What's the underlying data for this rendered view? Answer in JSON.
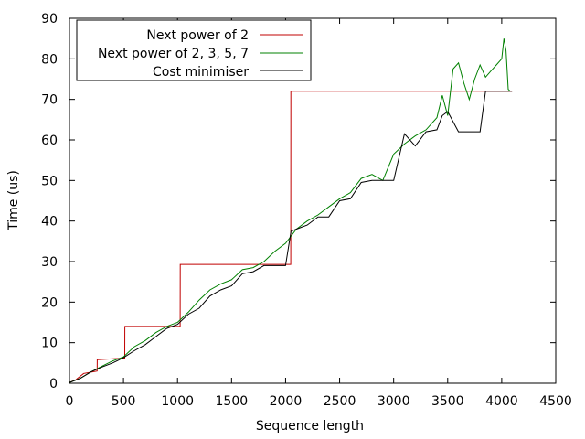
{
  "chart_data": {
    "type": "line",
    "title": "",
    "xlabel": "Sequence length",
    "ylabel": "Time (us)",
    "xlim": [
      0,
      4500
    ],
    "ylim": [
      0,
      90
    ],
    "xticks": [
      0,
      500,
      1000,
      1500,
      2000,
      2500,
      3000,
      3500,
      4000,
      4500
    ],
    "yticks": [
      0,
      10,
      20,
      30,
      40,
      50,
      60,
      70,
      80,
      90
    ],
    "grid": false,
    "legend_position": "top-left",
    "series": [
      {
        "name": "Next power of 2",
        "color": "#c00000",
        "x": [
          2,
          64,
          65,
          128,
          129,
          256,
          257,
          512,
          513,
          1024,
          1025,
          2048,
          2049,
          4096
        ],
        "y": [
          0.2,
          0.9,
          1.0,
          2.3,
          2.4,
          3.0,
          5.8,
          6.2,
          14.0,
          14.0,
          29.3,
          29.3,
          72.0,
          72.0
        ]
      },
      {
        "name": "Next power of 2, 3, 5, 7",
        "color": "#008000",
        "x": [
          2,
          100,
          200,
          300,
          400,
          500,
          600,
          700,
          800,
          900,
          1000,
          1100,
          1200,
          1300,
          1400,
          1500,
          1600,
          1700,
          1800,
          1900,
          2000,
          2100,
          2200,
          2300,
          2400,
          2500,
          2600,
          2700,
          2800,
          2900,
          3000,
          3100,
          3200,
          3300,
          3400,
          3450,
          3500,
          3550,
          3600,
          3650,
          3700,
          3750,
          3800,
          3850,
          3900,
          3950,
          4000,
          4020,
          4040,
          4060,
          4080
        ],
        "y": [
          0.2,
          1.2,
          2.8,
          4.2,
          5.5,
          6.5,
          9.0,
          10.5,
          12.5,
          14.0,
          15.0,
          17.5,
          20.5,
          23.0,
          24.5,
          25.5,
          28.0,
          28.5,
          30.0,
          32.5,
          34.5,
          38.0,
          40.0,
          41.5,
          43.5,
          45.5,
          47.0,
          50.5,
          51.5,
          50.0,
          56.5,
          59.0,
          61.0,
          62.5,
          65.5,
          71.0,
          66.0,
          77.5,
          79.0,
          74.0,
          70.0,
          75.0,
          78.5,
          75.5,
          77.0,
          78.5,
          80.0,
          85.0,
          82.0,
          72.5,
          72.0
        ]
      },
      {
        "name": "Cost minimiser",
        "color": "#000000",
        "x": [
          2,
          100,
          200,
          300,
          400,
          500,
          600,
          700,
          800,
          900,
          1000,
          1100,
          1200,
          1300,
          1400,
          1500,
          1600,
          1700,
          1800,
          1900,
          2000,
          2050,
          2100,
          2200,
          2300,
          2400,
          2500,
          2600,
          2700,
          2800,
          2900,
          3000,
          3100,
          3200,
          3300,
          3400,
          3450,
          3500,
          3600,
          3700,
          3800,
          3850,
          3900,
          4000,
          4096
        ],
        "y": [
          0.2,
          1.2,
          2.8,
          4.0,
          5.0,
          6.3,
          8.0,
          9.5,
          11.5,
          13.5,
          14.5,
          17.0,
          18.5,
          21.5,
          23.0,
          24.0,
          27.0,
          27.5,
          29.0,
          29.0,
          29.0,
          37.5,
          38.0,
          39.0,
          41.0,
          41.0,
          45.0,
          45.5,
          49.5,
          50.0,
          50.0,
          50.0,
          61.5,
          58.5,
          62.0,
          62.5,
          66.0,
          67.0,
          62.0,
          62.0,
          62.0,
          72.0,
          72.0,
          72.0,
          72.0
        ]
      }
    ]
  }
}
